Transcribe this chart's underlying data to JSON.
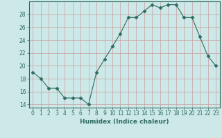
{
  "x": [
    0,
    1,
    2,
    3,
    4,
    5,
    6,
    7,
    8,
    9,
    10,
    11,
    12,
    13,
    14,
    15,
    16,
    17,
    18,
    19,
    20,
    21,
    22,
    23
  ],
  "y": [
    19,
    18,
    16.5,
    16.5,
    15,
    15,
    15,
    14,
    19,
    21,
    23,
    25,
    27.5,
    27.5,
    28.5,
    29.5,
    29,
    29.5,
    29.5,
    27.5,
    27.5,
    24.5,
    21.5,
    20
  ],
  "line_color": "#2e6b5e",
  "marker": "D",
  "marker_size": 2.5,
  "bg_color": "#cce8e8",
  "grid_color_x": "#c8a0a0",
  "grid_color_y": "#c8a0a0",
  "xlabel": "Humidex (Indice chaleur)",
  "ylim": [
    13.5,
    30.0
  ],
  "xlim": [
    -0.5,
    23.5
  ],
  "yticks": [
    14,
    16,
    18,
    20,
    22,
    24,
    26,
    28
  ],
  "xtick_labels": [
    "0",
    "1",
    "2",
    "3",
    "4",
    "5",
    "6",
    "7",
    "8",
    "9",
    "10",
    "11",
    "12",
    "13",
    "14",
    "15",
    "16",
    "17",
    "18",
    "19",
    "20",
    "21",
    "22",
    "23"
  ],
  "tick_color": "#2e6b5e",
  "label_fontsize": 6.5,
  "tick_fontsize": 5.5
}
